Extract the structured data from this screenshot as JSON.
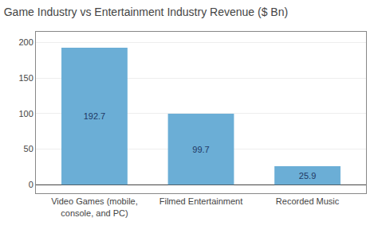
{
  "chart_data": {
    "type": "bar",
    "title": "Game Industry vs Entertainment Industry Revenue ($ Bn)",
    "categories": [
      "Video Games (mobile,\nconsole, and PC)",
      "Filmed Entertainment",
      "Recorded Music"
    ],
    "values": [
      192.7,
      99.7,
      25.9
    ],
    "color": "#6BAED6",
    "ylim": [
      -12,
      215
    ],
    "yticks": [
      0,
      50,
      100,
      150,
      200
    ],
    "grid": true,
    "data_labels": true
  }
}
